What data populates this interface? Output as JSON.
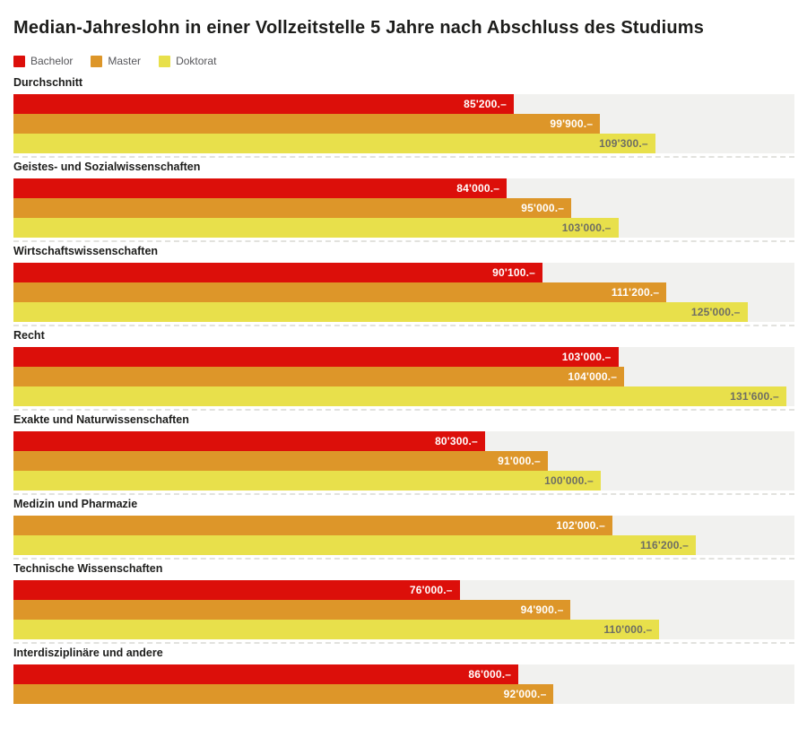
{
  "title": "Median-Jahreslohn in einer Vollzeitstelle 5 Jahre nach Abschluss des Studiums",
  "legend": [
    {
      "label": "Bachelor",
      "color": "#dc0f0a",
      "value_label_color": "#ffffff"
    },
    {
      "label": "Master",
      "color": "#dd9629",
      "value_label_color": "#ffffff"
    },
    {
      "label": "Doktorat",
      "color": "#e8e04b",
      "value_label_color": "#6e6e64"
    }
  ],
  "colors": {
    "track_background": "#f1f1ef",
    "title_text": "#1d1d1b",
    "legend_text": "#56565a",
    "separator": "#e2e2de"
  },
  "chart_data": {
    "type": "bar",
    "orientation": "horizontal",
    "title": "Median-Jahreslohn in einer Vollzeitstelle 5 Jahre nach Abschluss des Studiums",
    "xlabel": "",
    "ylabel": "",
    "xlim": [
      0,
      133000
    ],
    "grid": false,
    "legend_position": "top",
    "unit": "CHF",
    "categories": [
      "Durchschnitt",
      "Geistes- und Sozialwissenschaften",
      "Wirtschaftswissenschaften",
      "Recht",
      "Exakte und Naturwissenschaften",
      "Medizin und Pharmazie",
      "Technische Wissenschaften",
      "Interdisziplinäre und andere"
    ],
    "series": [
      {
        "name": "Bachelor",
        "values": [
          85200,
          84000,
          90100,
          103000,
          80300,
          null,
          76000,
          86000
        ]
      },
      {
        "name": "Master",
        "values": [
          99900,
          95000,
          111200,
          104000,
          91000,
          102000,
          94900,
          92000
        ]
      },
      {
        "name": "Doktorat",
        "values": [
          109300,
          103000,
          125000,
          131600,
          100000,
          116200,
          110000,
          null
        ]
      }
    ]
  },
  "groups": [
    {
      "label": "Durchschnitt",
      "bars": [
        {
          "series": "Bachelor",
          "value": 85200,
          "display": "85'200.–"
        },
        {
          "series": "Master",
          "value": 99900,
          "display": "99'900.–"
        },
        {
          "series": "Doktorat",
          "value": 109300,
          "display": "109'300.–"
        }
      ]
    },
    {
      "label": "Geistes- und Sozialwissenschaften",
      "bars": [
        {
          "series": "Bachelor",
          "value": 84000,
          "display": "84'000.–"
        },
        {
          "series": "Master",
          "value": 95000,
          "display": "95'000.–"
        },
        {
          "series": "Doktorat",
          "value": 103000,
          "display": "103'000.–"
        }
      ]
    },
    {
      "label": "Wirtschaftswissenschaften",
      "bars": [
        {
          "series": "Bachelor",
          "value": 90100,
          "display": "90'100.–"
        },
        {
          "series": "Master",
          "value": 111200,
          "display": "111'200.–"
        },
        {
          "series": "Doktorat",
          "value": 125000,
          "display": "125'000.–"
        }
      ]
    },
    {
      "label": "Recht",
      "bars": [
        {
          "series": "Bachelor",
          "value": 103000,
          "display": "103'000.–"
        },
        {
          "series": "Master",
          "value": 104000,
          "display": "104'000.–"
        },
        {
          "series": "Doktorat",
          "value": 131600,
          "display": "131'600.–"
        }
      ]
    },
    {
      "label": "Exakte und Naturwissenschaften",
      "bars": [
        {
          "series": "Bachelor",
          "value": 80300,
          "display": "80'300.–"
        },
        {
          "series": "Master",
          "value": 91000,
          "display": "91'000.–"
        },
        {
          "series": "Doktorat",
          "value": 100000,
          "display": "100'000.–"
        }
      ]
    },
    {
      "label": "Medizin und Pharmazie",
      "bars": [
        {
          "series": "Master",
          "value": 102000,
          "display": "102'000.–"
        },
        {
          "series": "Doktorat",
          "value": 116200,
          "display": "116'200.–"
        }
      ]
    },
    {
      "label": "Technische Wissenschaften",
      "bars": [
        {
          "series": "Bachelor",
          "value": 76000,
          "display": "76'000.–"
        },
        {
          "series": "Master",
          "value": 94900,
          "display": "94'900.–"
        },
        {
          "series": "Doktorat",
          "value": 110000,
          "display": "110'000.–"
        }
      ]
    },
    {
      "label": "Interdisziplinäre und andere",
      "bars": [
        {
          "series": "Bachelor",
          "value": 86000,
          "display": "86'000.–"
        },
        {
          "series": "Master",
          "value": 92000,
          "display": "92'000.–"
        }
      ]
    }
  ]
}
